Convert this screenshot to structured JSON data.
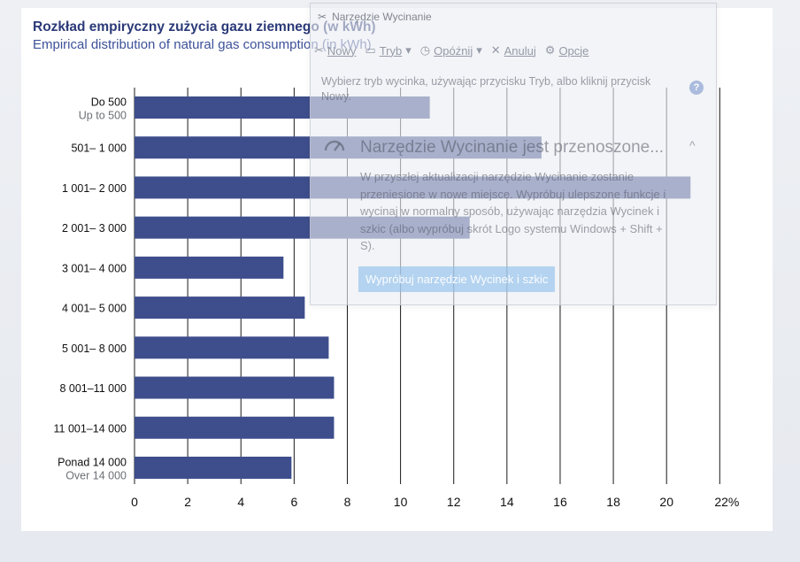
{
  "chart_data": {
    "type": "bar",
    "orientation": "horizontal",
    "title": "Rozkład empiryczny zużycia gazu ziemnego (w kWh)",
    "subtitle": "Empirical distribution of natural gas consumption (in kWh)",
    "categories": [
      {
        "main": "Do 500",
        "sub": "Up to 500"
      },
      {
        "main": "501– 1 000",
        "sub": ""
      },
      {
        "main": "1 001– 2 000",
        "sub": ""
      },
      {
        "main": "2 001– 3 000",
        "sub": ""
      },
      {
        "main": "3 001– 4 000",
        "sub": ""
      },
      {
        "main": "4 001– 5 000",
        "sub": ""
      },
      {
        "main": "5 001– 8 000",
        "sub": ""
      },
      {
        "main": "8 001–11 000",
        "sub": ""
      },
      {
        "main": "11 001–14 000",
        "sub": ""
      },
      {
        "main": "Ponad 14 000",
        "sub": "Over 14 000"
      }
    ],
    "values": [
      11.1,
      15.3,
      20.9,
      12.6,
      5.6,
      6.4,
      7.3,
      7.5,
      7.5,
      5.9
    ],
    "xlim": [
      0,
      22
    ],
    "ticks": [
      "0",
      "2",
      "4",
      "6",
      "8",
      "10",
      "12",
      "14",
      "16",
      "18",
      "20",
      "22%"
    ],
    "grid": true,
    "bar_color": "#3e4e8c"
  },
  "snipping_tool": {
    "title": "Narzędzie Wycinanie",
    "toolbar": {
      "new": "Nowy",
      "mode": "Tryb",
      "delay": "Opóźnij",
      "cancel": "Anuluj",
      "options": "Opcje"
    },
    "hint": "Wybierz tryb wycinka, używając przycisku Tryb, albo kliknij przycisk Nowy.",
    "help": "?",
    "notice_heading": "Narzędzie Wycinanie jest przenoszone...",
    "notice_body": "W przyszłej aktualizacji narzędzie Wycinanie zostanie przeniesione w nowe miejsce. Wypróbuj ulepszone funkcje i wycinaj w normalny sposób, używając narzędzia Wycinek i szkic (albo wypróbuj skrót Logo systemu Windows + Shift + S).",
    "cta": "Wypróbuj narzędzie Wycinek i szkic",
    "collapse": "^"
  }
}
